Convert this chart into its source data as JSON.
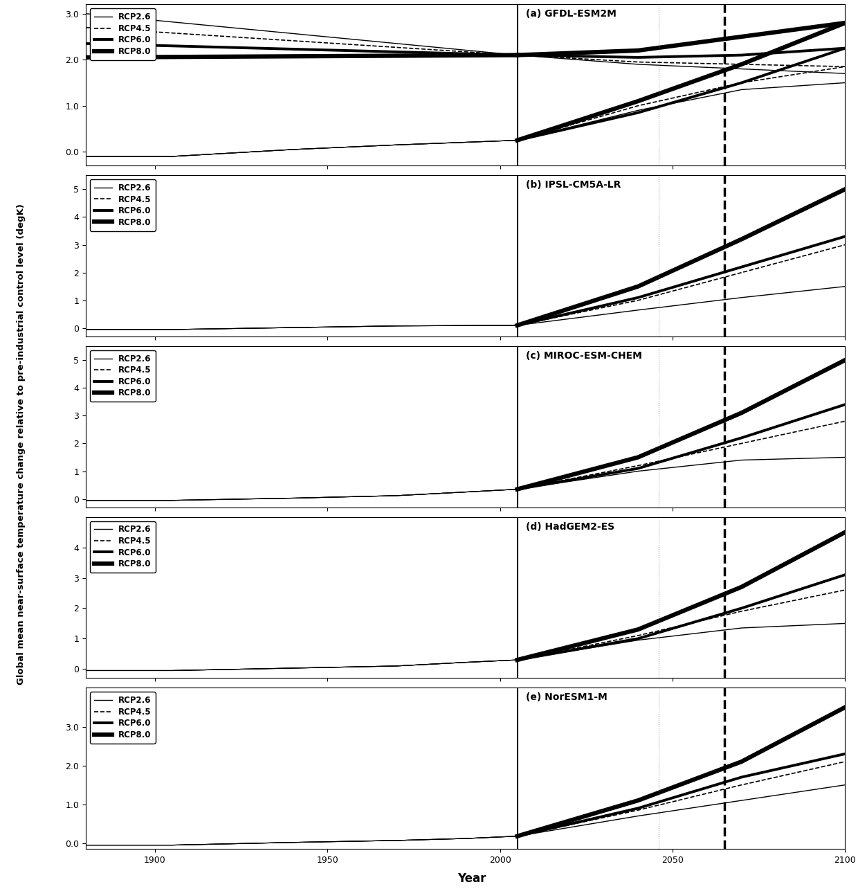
{
  "panels": [
    {
      "label": "(a) GFDL-ESM2M",
      "ylim": [
        -0.3,
        3.2
      ],
      "yticks": [
        0.0,
        1.0,
        2.0,
        3.0
      ],
      "yticklabels": [
        "0.0",
        "1.0",
        "2.0",
        "3.0"
      ],
      "has_declining_hist_lines": true,
      "rcp26": {
        "hist": {
          "x": [
            1880,
            1905,
            1940,
            1970,
            2005
          ],
          "y": [
            -0.1,
            -0.1,
            0.05,
            0.15,
            0.25
          ]
        },
        "proj": {
          "x": [
            2005,
            2040,
            2070,
            2100
          ],
          "y": [
            0.25,
            0.9,
            1.35,
            1.5
          ]
        },
        "hist_top": {
          "x": [
            1880,
            2005
          ],
          "y": [
            3.0,
            2.1
          ]
        },
        "proj_cont": {
          "x": [
            2005,
            2040,
            2070,
            2100
          ],
          "y": [
            2.1,
            1.9,
            1.8,
            1.7
          ]
        }
      },
      "rcp45": {
        "hist": {
          "x": [
            1880,
            1905,
            1940,
            1970,
            2005
          ],
          "y": [
            -0.1,
            -0.1,
            0.05,
            0.15,
            0.25
          ]
        },
        "proj": {
          "x": [
            2005,
            2040,
            2070,
            2100
          ],
          "y": [
            0.25,
            1.0,
            1.5,
            1.85
          ]
        },
        "hist_top": {
          "x": [
            1880,
            2005
          ],
          "y": [
            2.7,
            2.1
          ]
        },
        "proj_cont": {
          "x": [
            2005,
            2040,
            2070,
            2100
          ],
          "y": [
            2.1,
            1.95,
            1.9,
            1.85
          ]
        }
      },
      "rcp60": {
        "hist": {
          "x": [
            1880,
            1905,
            1940,
            1970,
            2005
          ],
          "y": [
            -0.1,
            -0.1,
            0.05,
            0.15,
            0.25
          ]
        },
        "proj": {
          "x": [
            2005,
            2040,
            2070,
            2100
          ],
          "y": [
            0.25,
            0.85,
            1.5,
            2.25
          ]
        },
        "hist_top": {
          "x": [
            1880,
            2005
          ],
          "y": [
            2.35,
            2.1
          ]
        },
        "proj_cont": {
          "x": [
            2005,
            2040,
            2070,
            2100
          ],
          "y": [
            2.1,
            2.05,
            2.1,
            2.25
          ]
        }
      },
      "rcp80": {
        "hist": {
          "x": [
            1880,
            1905,
            1940,
            1970,
            2005
          ],
          "y": [
            -0.1,
            -0.1,
            0.05,
            0.15,
            0.25
          ]
        },
        "proj": {
          "x": [
            2005,
            2040,
            2070,
            2100
          ],
          "y": [
            0.25,
            1.1,
            1.9,
            2.8
          ]
        },
        "hist_top": {
          "x": [
            1880,
            2005
          ],
          "y": [
            2.05,
            2.1
          ]
        },
        "proj_cont": {
          "x": [
            2005,
            2040,
            2070,
            2100
          ],
          "y": [
            2.1,
            2.2,
            2.5,
            2.8
          ]
        }
      }
    },
    {
      "label": "(b) IPSL-CM5A-LR",
      "ylim": [
        -0.3,
        5.5
      ],
      "yticks": [
        0,
        1,
        2,
        3,
        4,
        5
      ],
      "yticklabels": [
        "0",
        "1",
        "2",
        "3",
        "4",
        "5"
      ],
      "has_declining_hist_lines": false,
      "rcp26": {
        "hist": {
          "x": [
            1880,
            1905,
            1940,
            1970,
            2005
          ],
          "y": [
            -0.05,
            -0.05,
            0.02,
            0.08,
            0.1
          ]
        },
        "proj": {
          "x": [
            2005,
            2040,
            2070,
            2100
          ],
          "y": [
            0.1,
            0.65,
            1.1,
            1.5
          ]
        }
      },
      "rcp45": {
        "hist": {
          "x": [
            1880,
            1905,
            1940,
            1970,
            2005
          ],
          "y": [
            -0.05,
            -0.05,
            0.02,
            0.08,
            0.1
          ]
        },
        "proj": {
          "x": [
            2005,
            2040,
            2070,
            2100
          ],
          "y": [
            0.1,
            1.0,
            2.0,
            3.0
          ]
        }
      },
      "rcp60": {
        "hist": {
          "x": [
            1880,
            1905,
            1940,
            1970,
            2005
          ],
          "y": [
            -0.05,
            -0.05,
            0.02,
            0.08,
            0.1
          ]
        },
        "proj": {
          "x": [
            2005,
            2040,
            2070,
            2100
          ],
          "y": [
            0.1,
            1.1,
            2.2,
            3.3
          ]
        }
      },
      "rcp80": {
        "hist": {
          "x": [
            1880,
            1905,
            1940,
            1970,
            2005
          ],
          "y": [
            -0.05,
            -0.05,
            0.02,
            0.08,
            0.1
          ]
        },
        "proj": {
          "x": [
            2005,
            2040,
            2070,
            2100
          ],
          "y": [
            0.1,
            1.5,
            3.2,
            5.0
          ]
        }
      }
    },
    {
      "label": "(c) MIROC-ESM-CHEM",
      "ylim": [
        -0.3,
        5.5
      ],
      "yticks": [
        0,
        1,
        2,
        3,
        4,
        5
      ],
      "yticklabels": [
        "0",
        "1",
        "2",
        "3",
        "4",
        "5"
      ],
      "has_declining_hist_lines": false,
      "rcp26": {
        "hist": {
          "x": [
            1880,
            1905,
            1940,
            1970,
            1990,
            2005
          ],
          "y": [
            -0.05,
            -0.05,
            0.03,
            0.12,
            0.25,
            0.35
          ]
        },
        "proj": {
          "x": [
            2005,
            2040,
            2070,
            2100
          ],
          "y": [
            0.35,
            1.0,
            1.4,
            1.5
          ]
        }
      },
      "rcp45": {
        "hist": {
          "x": [
            1880,
            1905,
            1940,
            1970,
            1990,
            2005
          ],
          "y": [
            -0.05,
            -0.05,
            0.03,
            0.12,
            0.25,
            0.35
          ]
        },
        "proj": {
          "x": [
            2005,
            2040,
            2070,
            2100
          ],
          "y": [
            0.35,
            1.2,
            2.0,
            2.8
          ]
        }
      },
      "rcp60": {
        "hist": {
          "x": [
            1880,
            1905,
            1940,
            1970,
            1990,
            2005
          ],
          "y": [
            -0.05,
            -0.05,
            0.03,
            0.12,
            0.25,
            0.35
          ]
        },
        "proj": {
          "x": [
            2005,
            2040,
            2070,
            2100
          ],
          "y": [
            0.35,
            1.1,
            2.2,
            3.4
          ]
        }
      },
      "rcp80": {
        "hist": {
          "x": [
            1880,
            1905,
            1940,
            1970,
            1990,
            2005
          ],
          "y": [
            -0.05,
            -0.05,
            0.03,
            0.12,
            0.25,
            0.35
          ]
        },
        "proj": {
          "x": [
            2005,
            2040,
            2070,
            2100
          ],
          "y": [
            0.35,
            1.5,
            3.1,
            5.0
          ]
        }
      }
    },
    {
      "label": "(d) HadGEM2-ES",
      "ylim": [
        -0.3,
        5.0
      ],
      "yticks": [
        0,
        1,
        2,
        3,
        4
      ],
      "yticklabels": [
        "0",
        "1",
        "2",
        "3",
        "4"
      ],
      "has_declining_hist_lines": false,
      "rcp26": {
        "hist": {
          "x": [
            1880,
            1905,
            1940,
            1970,
            1990,
            2005
          ],
          "y": [
            -0.05,
            -0.05,
            0.03,
            0.1,
            0.22,
            0.3
          ]
        },
        "proj": {
          "x": [
            2005,
            2040,
            2070,
            2100
          ],
          "y": [
            0.3,
            0.95,
            1.35,
            1.5
          ]
        }
      },
      "rcp45": {
        "hist": {
          "x": [
            1880,
            1905,
            1940,
            1970,
            1990,
            2005
          ],
          "y": [
            -0.05,
            -0.05,
            0.03,
            0.1,
            0.22,
            0.3
          ]
        },
        "proj": {
          "x": [
            2005,
            2040,
            2070,
            2100
          ],
          "y": [
            0.3,
            1.1,
            1.9,
            2.6
          ]
        }
      },
      "rcp60": {
        "hist": {
          "x": [
            1880,
            1905,
            1940,
            1970,
            1990,
            2005
          ],
          "y": [
            -0.05,
            -0.05,
            0.03,
            0.1,
            0.22,
            0.3
          ]
        },
        "proj": {
          "x": [
            2005,
            2040,
            2070,
            2100
          ],
          "y": [
            0.3,
            1.0,
            2.0,
            3.1
          ]
        }
      },
      "rcp80": {
        "hist": {
          "x": [
            1880,
            1905,
            1940,
            1970,
            1990,
            2005
          ],
          "y": [
            -0.05,
            -0.05,
            0.03,
            0.1,
            0.22,
            0.3
          ]
        },
        "proj": {
          "x": [
            2005,
            2040,
            2070,
            2100
          ],
          "y": [
            0.3,
            1.3,
            2.7,
            4.5
          ]
        }
      }
    },
    {
      "label": "(e) NorESM1-M",
      "ylim": [
        -0.15,
        4.0
      ],
      "yticks": [
        0.0,
        1.0,
        2.0,
        3.0
      ],
      "yticklabels": [
        "0.0",
        "1.0",
        "2.0",
        "3.0"
      ],
      "has_declining_hist_lines": false,
      "rcp26": {
        "hist": {
          "x": [
            1880,
            1905,
            1940,
            1970,
            1990,
            2005
          ],
          "y": [
            -0.05,
            -0.05,
            0.02,
            0.07,
            0.12,
            0.18
          ]
        },
        "proj": {
          "x": [
            2005,
            2040,
            2070,
            2100
          ],
          "y": [
            0.18,
            0.7,
            1.1,
            1.5
          ]
        }
      },
      "rcp45": {
        "hist": {
          "x": [
            1880,
            1905,
            1940,
            1970,
            1990,
            2005
          ],
          "y": [
            -0.05,
            -0.05,
            0.02,
            0.07,
            0.12,
            0.18
          ]
        },
        "proj": {
          "x": [
            2005,
            2040,
            2070,
            2100
          ],
          "y": [
            0.18,
            0.85,
            1.5,
            2.1
          ]
        }
      },
      "rcp60": {
        "hist": {
          "x": [
            1880,
            1905,
            1940,
            1970,
            1990,
            2005
          ],
          "y": [
            -0.05,
            -0.05,
            0.02,
            0.07,
            0.12,
            0.18
          ]
        },
        "proj": {
          "x": [
            2005,
            2040,
            2070,
            2100
          ],
          "y": [
            0.18,
            0.9,
            1.7,
            2.3
          ]
        }
      },
      "rcp80": {
        "hist": {
          "x": [
            1880,
            1905,
            1940,
            1970,
            1990,
            2005
          ],
          "y": [
            -0.05,
            -0.05,
            0.02,
            0.07,
            0.12,
            0.18
          ]
        },
        "proj": {
          "x": [
            2005,
            2040,
            2070,
            2100
          ],
          "y": [
            0.18,
            1.1,
            2.1,
            3.5
          ]
        }
      }
    }
  ],
  "vline_solid": 2005,
  "vline_dot": 2046,
  "vline_dash": 2065,
  "xlim": [
    1880,
    2100
  ],
  "xticks": [
    1900,
    1950,
    2000,
    2050,
    2100
  ],
  "xlabel": "Year",
  "ylabel": "Global mean near-surface temperature change relative to pre-industrial control level (degK)",
  "rcp_styles": {
    "rcp26": {
      "lw": 1.0,
      "ls": "-",
      "color": "black",
      "hist_lw": 0.8
    },
    "rcp45": {
      "lw": 1.2,
      "ls": "--",
      "color": "black",
      "hist_lw": 0.8
    },
    "rcp60": {
      "lw": 2.8,
      "ls": "-",
      "color": "black",
      "hist_lw": 0.8
    },
    "rcp80": {
      "lw": 4.5,
      "ls": "-",
      "color": "black",
      "hist_lw": 0.8
    }
  },
  "legend_labels": {
    "rcp26": "RCP2.6",
    "rcp45": "RCP4.5",
    "rcp60": "RCP6.0",
    "rcp80": "RCP8.0"
  }
}
